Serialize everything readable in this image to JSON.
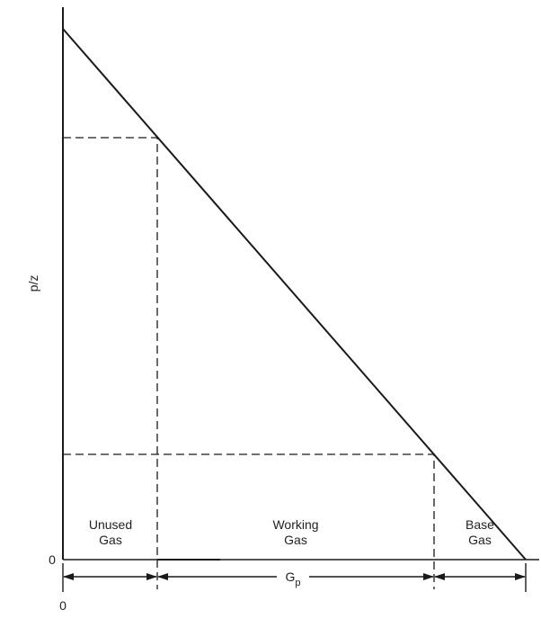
{
  "axes": {
    "y_label": "p/z",
    "y_origin": "0",
    "x_origin": "0"
  },
  "regions": [
    {
      "lines": [
        "Unused",
        "Gas"
      ]
    },
    {
      "lines": [
        "Working",
        "Gas"
      ]
    },
    {
      "lines": [
        "Base",
        "Gas"
      ]
    }
  ],
  "gp_label": {
    "main": "G",
    "sub": "p"
  }
}
